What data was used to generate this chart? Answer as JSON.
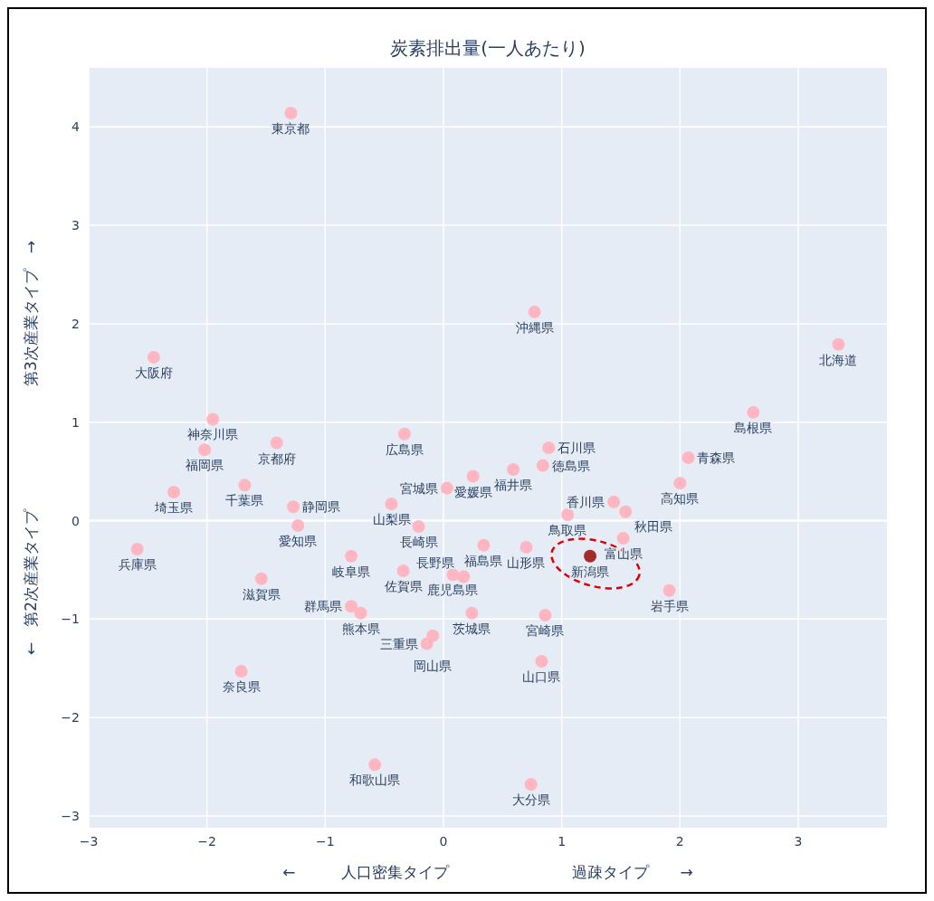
{
  "chart_data": {
    "type": "scatter",
    "title": "炭素排出量(一人あたり)",
    "xlabel": "←　　　人口密集タイプ　　　　　　　　過疎タイプ　　→",
    "ylabel": "←　第2次産業タイプ　　　　　　　　第3次産業タイプ　→",
    "xlim": [
      -3,
      3.75
    ],
    "ylim": [
      -3.12,
      4.6
    ],
    "xticks": [
      -3,
      -2,
      -1,
      0,
      1,
      2,
      3
    ],
    "yticks": [
      -3,
      -2,
      -1,
      0,
      1,
      2,
      3,
      4
    ],
    "grid": true,
    "marker": "circle",
    "x": [
      -1.29,
      0.77,
      3.34,
      -2.45,
      2.62,
      -1.95,
      -2.02,
      -1.41,
      -0.33,
      0.89,
      2.07,
      2.0,
      0.59,
      0.84,
      0.25,
      0.03,
      -2.28,
      -1.68,
      -1.27,
      -1.23,
      -0.44,
      -0.21,
      1.44,
      1.05,
      1.54,
      1.52,
      1.24,
      1.91,
      -2.59,
      -0.78,
      0.34,
      0.7,
      -0.34,
      0.08,
      0.17,
      -1.54,
      -0.78,
      -0.7,
      0.24,
      0.86,
      -0.09,
      -0.14,
      0.83,
      -1.71,
      -0.58,
      0.74
    ],
    "values": [
      4.14,
      2.12,
      1.79,
      1.66,
      1.1,
      1.03,
      0.72,
      0.79,
      0.88,
      0.74,
      0.64,
      0.38,
      0.52,
      0.56,
      0.45,
      0.33,
      0.29,
      0.36,
      0.14,
      -0.05,
      0.17,
      -0.06,
      0.19,
      0.06,
      0.09,
      -0.18,
      -0.36,
      -0.71,
      -0.29,
      -0.36,
      -0.25,
      -0.27,
      -0.51,
      -0.55,
      -0.57,
      -0.59,
      -0.87,
      -0.94,
      -0.94,
      -0.96,
      -1.17,
      -1.25,
      -1.43,
      -1.53,
      -2.48,
      -2.68
    ],
    "value_labels": [
      "東京都",
      "沖縄県",
      "北海道",
      "大阪府",
      "島根県",
      "神奈川県",
      "福岡県",
      "京都府",
      "広島県",
      "石川県",
      "青森県",
      "高知県",
      "福井県",
      "徳島県",
      "愛媛県",
      "宮城県",
      "埼玉県",
      "千葉県",
      "静岡県",
      "愛知県",
      "山梨県",
      "長崎県",
      "香川県",
      "鳥取県",
      "秋田県",
      "富山県",
      "新潟県",
      "岩手県",
      "兵庫県",
      "岐阜県",
      "福島県",
      "山形県",
      "佐賀県",
      "鹿児島県",
      "長野県",
      "滋賀県",
      "群馬県",
      "熊本県",
      "茨城県",
      "宮崎県",
      "岡山県",
      "三重県",
      "山口県",
      "奈良県",
      "和歌山県",
      "大分県"
    ],
    "colors": [
      "#ffb6c1",
      "#ffb6c1",
      "#ffb6c1",
      "#ffb6c1",
      "#ffb6c1",
      "#ffb6c1",
      "#ffb6c1",
      "#ffb6c1",
      "#ffb6c1",
      "#ffb6c1",
      "#ffb6c1",
      "#ffb6c1",
      "#ffb6c1",
      "#ffb6c1",
      "#ffb6c1",
      "#ffb6c1",
      "#ffb6c1",
      "#ffb6c1",
      "#ffb6c1",
      "#ffb6c1",
      "#ffb6c1",
      "#ffb6c1",
      "#ffb6c1",
      "#ffb6c1",
      "#ffb6c1",
      "#ffb6c1",
      "#a52a2a",
      "#ffb6c1",
      "#ffb6c1",
      "#ffb6c1",
      "#ffb6c1",
      "#ffb6c1",
      "#ffb6c1",
      "#ffb6c1",
      "#ffb6c1",
      "#ffb6c1",
      "#ffb6c1",
      "#ffb6c1",
      "#ffb6c1",
      "#ffb6c1",
      "#ffb6c1",
      "#ffb6c1",
      "#ffb6c1",
      "#ffb6c1",
      "#ffb6c1",
      "#ffb6c1"
    ]
  }
}
